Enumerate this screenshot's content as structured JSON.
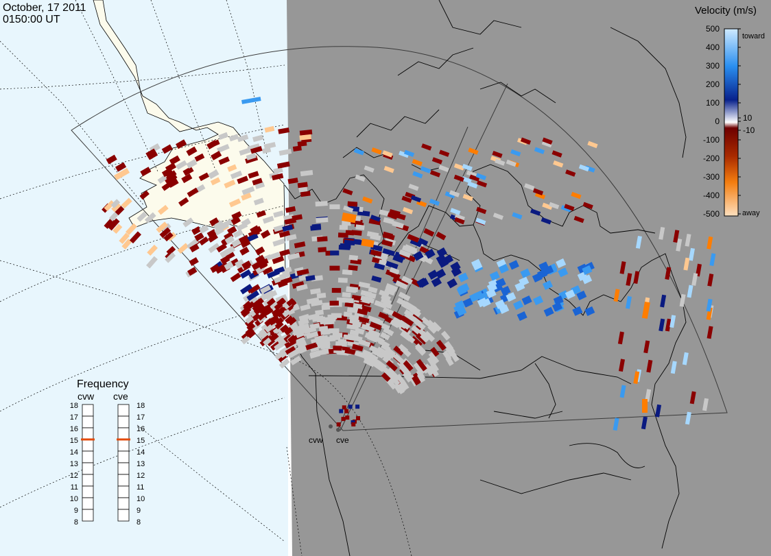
{
  "header": {
    "date": "October, 17 2011",
    "time": "0150:00 UT"
  },
  "colorbar": {
    "title": "Velocity (m/s)",
    "ticks": [
      "500",
      "400",
      "300",
      "200",
      "100",
      "10",
      "0",
      "-10",
      "-100",
      "-200",
      "-300",
      "-400",
      "-500"
    ],
    "toward_label": "toward",
    "away_label": "away"
  },
  "frequency": {
    "title": "Frequency",
    "radars": [
      {
        "name": "cvw",
        "current": 15
      },
      {
        "name": "cve",
        "current": 15
      }
    ],
    "ticks": [
      "18",
      "17",
      "16",
      "15",
      "14",
      "13",
      "12",
      "11",
      "10",
      "9",
      "8"
    ]
  },
  "sites": {
    "west": "cvw",
    "east": "cve"
  },
  "colors": {
    "day_ocean": "#e8f6fd",
    "day_land": "#fcfbec",
    "night": "#979797",
    "ground_scatter": "#c8c8c8",
    "frequency_marker": "#e34a0a"
  }
}
